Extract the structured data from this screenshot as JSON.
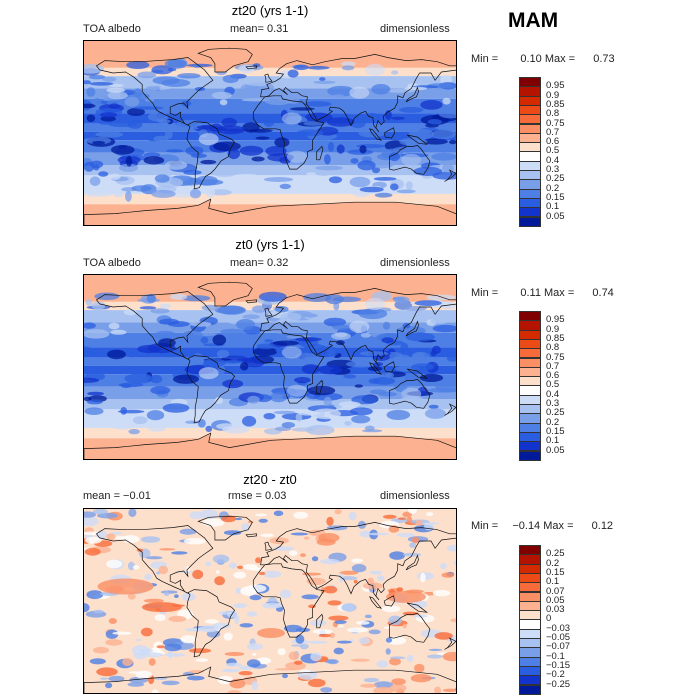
{
  "season": "MAM",
  "panels": [
    {
      "title": "zt20 (yrs 1-1)",
      "left_label": "TOA albedo",
      "center_label": "mean=   0.31",
      "right_label": "dimensionless",
      "min_label": "Min =",
      "min_value": "0.10",
      "max_label": "Max =",
      "max_value": "0.73",
      "kind": "abs"
    },
    {
      "title": "zt0 (yrs 1-1)",
      "left_label": "TOA albedo",
      "center_label": "mean=   0.32",
      "right_label": "dimensionless",
      "min_label": "Min =",
      "min_value": "0.11",
      "max_label": "Max =",
      "max_value": "0.74",
      "kind": "abs"
    },
    {
      "title": "zt20 - zt0",
      "left_label": "mean =   −0.01",
      "center_label": "rmse =    0.03",
      "right_label": "dimensionless",
      "min_label": "Min =",
      "min_value": "−0.14",
      "max_label": "Max =",
      "max_value": "0.12",
      "kind": "diff"
    }
  ],
  "colorbars": {
    "abs": {
      "labels": [
        "0.95",
        "0.9",
        "0.85",
        "0.8",
        "0.75",
        "0.7",
        "0.6",
        "0.5",
        "0.4",
        "0.3",
        "0.25",
        "0.2",
        "0.15",
        "0.1",
        "0.05"
      ],
      "colors": [
        "#800000",
        "#b41300",
        "#d42a00",
        "#ec4a16",
        "#f76b3a",
        "#fa8e64",
        "#fcb291",
        "#fde0cc",
        "#ffffff",
        "#cddcf7",
        "#a7c1f0",
        "#7a9fe9",
        "#4e7fe4",
        "#2a5de0",
        "#1233cc",
        "#001a99"
      ]
    },
    "diff": {
      "labels": [
        "0.25",
        "0.2",
        "0.15",
        "0.1",
        "0.07",
        "0.05",
        "0.03",
        "0",
        "−0.03",
        "−0.05",
        "−0.07",
        "−0.1",
        "−0.15",
        "−0.2",
        "−0.25"
      ],
      "colors": [
        "#800000",
        "#b41300",
        "#d42a00",
        "#ec4a16",
        "#f76b3a",
        "#fa8e64",
        "#fcb291",
        "#fde0cc",
        "#ffffff",
        "#cddcf7",
        "#a7c1f0",
        "#7a9fe9",
        "#4e7fe4",
        "#2a5de0",
        "#1233cc",
        "#001a99"
      ]
    }
  },
  "chart_data": [
    {
      "type": "heatmap",
      "title": "zt20 (yrs 1-1)",
      "variable": "TOA albedo",
      "units": "dimensionless",
      "mean": 0.31,
      "min": 0.1,
      "max": 0.73,
      "levels": [
        0.05,
        0.1,
        0.15,
        0.2,
        0.25,
        0.3,
        0.4,
        0.5,
        0.6,
        0.7,
        0.75,
        0.8,
        0.85,
        0.9,
        0.95
      ]
    },
    {
      "type": "heatmap",
      "title": "zt0 (yrs 1-1)",
      "variable": "TOA albedo",
      "units": "dimensionless",
      "mean": 0.32,
      "min": 0.11,
      "max": 0.74,
      "levels": [
        0.05,
        0.1,
        0.15,
        0.2,
        0.25,
        0.3,
        0.4,
        0.5,
        0.6,
        0.7,
        0.75,
        0.8,
        0.85,
        0.9,
        0.95
      ]
    },
    {
      "type": "heatmap",
      "title": "zt20 - zt0",
      "units": "dimensionless",
      "mean": -0.01,
      "rmse": 0.03,
      "min": -0.14,
      "max": 0.12,
      "levels": [
        -0.25,
        -0.2,
        -0.15,
        -0.1,
        -0.07,
        -0.05,
        -0.03,
        0,
        0.03,
        0.05,
        0.07,
        0.1,
        0.15,
        0.2,
        0.25
      ]
    }
  ]
}
